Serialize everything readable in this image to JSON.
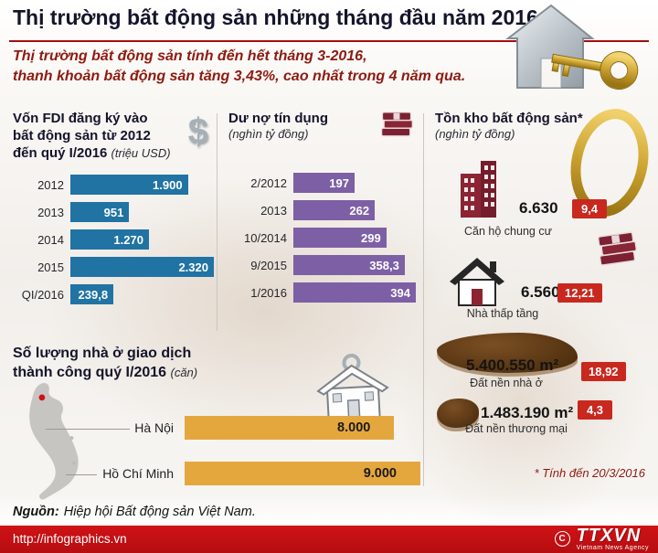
{
  "header": {
    "title": "Thị trường bất động sản những tháng đầu năm 2016",
    "subtitle": [
      "Thị trường bất động sản tính đến hết tháng 3-2016,",
      "thanh khoản bất động sản tăng 3,43%, cao nhất trong 4 năm qua."
    ]
  },
  "icons": {
    "dollar": "$"
  },
  "chart_data": [
    {
      "type": "bar",
      "orientation": "horizontal",
      "title_lines": [
        "Vốn FDI đăng ký vào",
        "bất động sản từ 2012",
        "đến quý I/2016"
      ],
      "unit": "(triệu USD)",
      "categories": [
        "2012",
        "2013",
        "2014",
        "2015",
        "QI/2016"
      ],
      "values": [
        1900,
        951,
        1270,
        2320,
        239.8
      ],
      "value_labels": [
        "1.900",
        "951",
        "1.270",
        "2.320",
        "239,8"
      ],
      "bar_color": "#2173a3",
      "value_color": "#ffffff"
    },
    {
      "type": "bar",
      "orientation": "horizontal",
      "title_lines": [
        "Dư nợ tín dụng"
      ],
      "unit": "(nghìn tỷ đồng)",
      "categories": [
        "2/2012",
        "2013",
        "10/2014",
        "9/2015",
        "1/2016"
      ],
      "values": [
        197,
        262,
        299,
        358.3,
        394
      ],
      "value_labels": [
        "197",
        "262",
        "299",
        "358,3",
        "394"
      ],
      "bar_color": "#7d5fa5",
      "value_color": "#ffffff"
    },
    {
      "type": "bar",
      "orientation": "horizontal",
      "title_lines": [
        "Số lượng nhà ở giao dịch",
        "thành công quý I/2016"
      ],
      "unit": "(căn)",
      "categories": [
        "Hà Nội",
        "Hồ Chí Minh"
      ],
      "values": [
        8000,
        9000
      ],
      "value_labels": [
        "8.000",
        "9.000"
      ],
      "bar_color": "#e4a73e",
      "value_color": "#1a1a1a"
    },
    {
      "type": "table",
      "title": "Tồn kho bất động sản*",
      "unit": "(nghìn tỷ đồng)",
      "footnote": "* Tính đến 20/3/2016",
      "rows": [
        {
          "icon": "apartment-icon",
          "quantity": "6.630",
          "label": "Căn hộ chung cư",
          "value": "9,4"
        },
        {
          "icon": "low-rise-house-icon",
          "quantity": "6.560",
          "label": "Nhà thấp tầng",
          "value": "12,21"
        },
        {
          "icon": "residential-land-icon",
          "quantity": "5.400.550 m²",
          "label": "Đất nền nhà ở",
          "value": "18,92"
        },
        {
          "icon": "commercial-land-icon",
          "quantity": "1.483.190 m²",
          "label": "Đất nền thương mại",
          "value": "4,3"
        }
      ]
    }
  ],
  "source": {
    "label": "Nguồn:",
    "text": "Hiệp hội Bất động sản Việt Nam."
  },
  "footer": {
    "url": "http://infographics.vn",
    "copyright": "C",
    "agency": "TTXVN",
    "agency_sub": "Vietnam News Agency"
  },
  "palette": {
    "rule_red": "#a50d12",
    "subtitle_red": "#8d1a10",
    "badge_red": "#c9281f",
    "footer_red": "#d01216",
    "text_dark": "#14142a",
    "bar_blue": "#2173a3",
    "bar_purple": "#7d5fa5",
    "bar_orange": "#e4a73e"
  }
}
